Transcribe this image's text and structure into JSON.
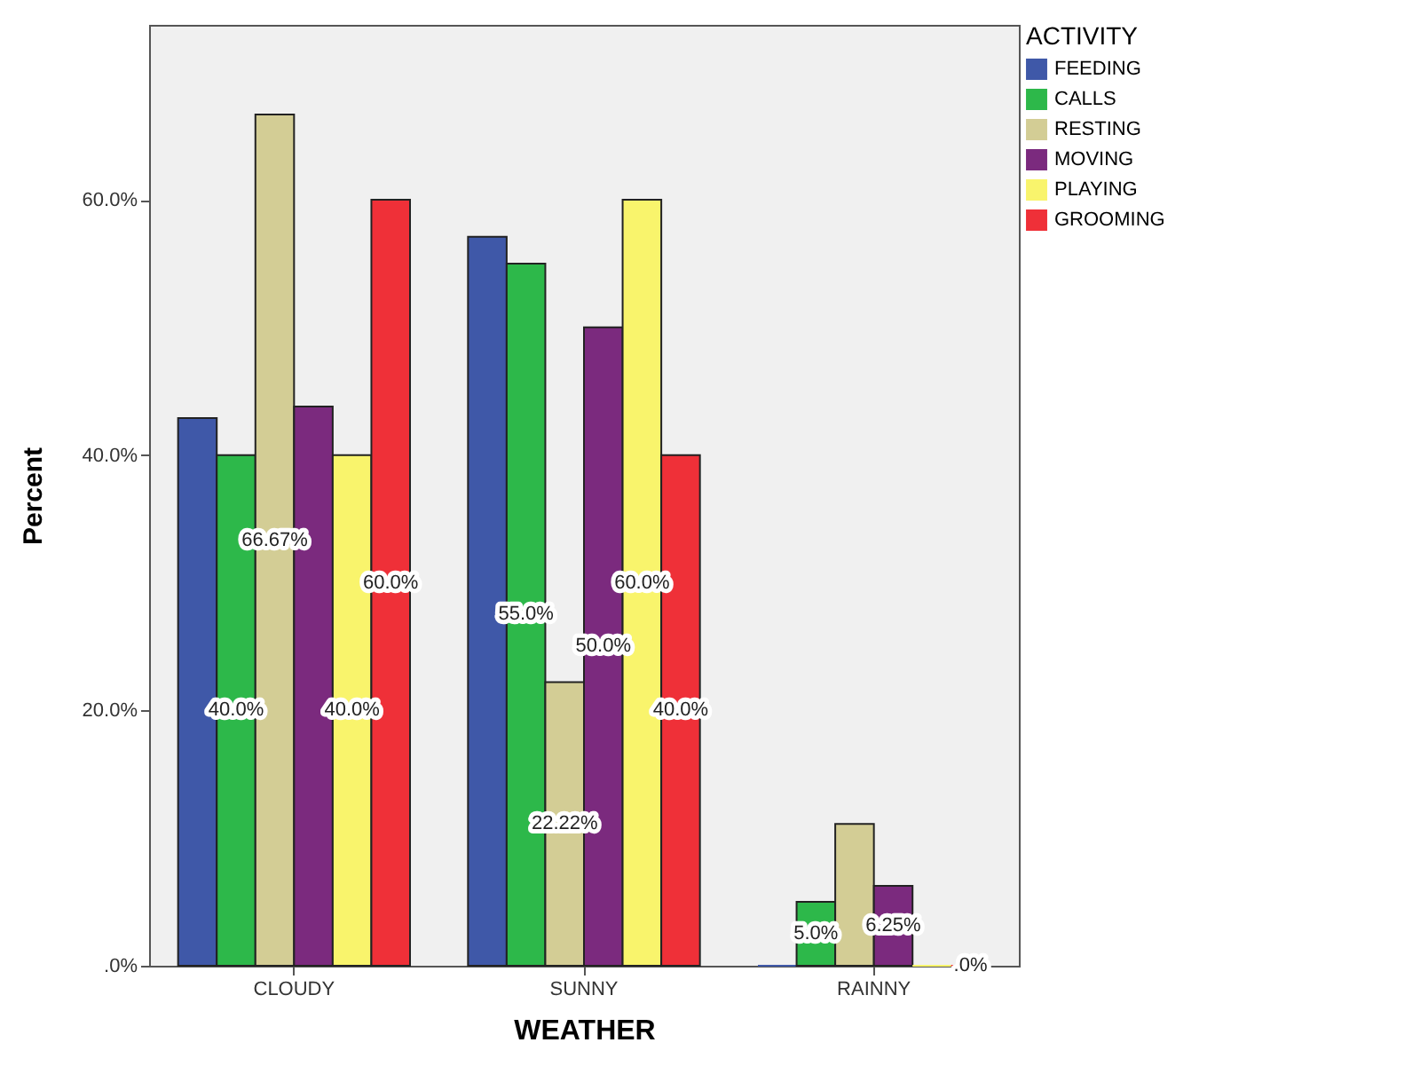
{
  "chart_data": {
    "type": "bar",
    "xlabel": "WEATHER",
    "ylabel": "Percent",
    "legend_title": "ACTIVITY",
    "legend": "top right",
    "grid": false,
    "categories": [
      "CLOUDY",
      "SUNNY",
      "RAINNY"
    ],
    "ylim": [
      0,
      73.7
    ],
    "yticks": [
      {
        "value": 0,
        "label": ".0%"
      },
      {
        "value": 20,
        "label": "20.0%"
      },
      {
        "value": 40,
        "label": "40.0%"
      },
      {
        "value": 60,
        "label": "60.0%"
      }
    ],
    "series": [
      {
        "name": "FEEDING",
        "color": "#3f58a8",
        "values": [
          42.9,
          57.1,
          0
        ],
        "value_labels": [
          null,
          null,
          null
        ]
      },
      {
        "name": "CALLS",
        "color": "#2db84a",
        "values": [
          40,
          55,
          5
        ],
        "value_labels": [
          "40.0%",
          "55.0%",
          "5.0%"
        ]
      },
      {
        "name": "RESTING",
        "color": "#d3cd95",
        "values": [
          66.67,
          22.22,
          11.1
        ],
        "value_labels": [
          "66.67%",
          "22.22%",
          null
        ]
      },
      {
        "name": "MOVING",
        "color": "#7b2a7e",
        "values": [
          43.8,
          50,
          6.25
        ],
        "value_labels": [
          null,
          "50.0%",
          "6.25%"
        ]
      },
      {
        "name": "PLAYING",
        "color": "#f9f46c",
        "values": [
          40,
          60,
          0
        ],
        "value_labels": [
          "40.0%",
          "60.0%",
          null
        ]
      },
      {
        "name": "GROOMING",
        "color": "#ef3038",
        "values": [
          60,
          40,
          0
        ],
        "value_labels": [
          "60.0%",
          "40.0%",
          ".0%"
        ]
      }
    ]
  }
}
